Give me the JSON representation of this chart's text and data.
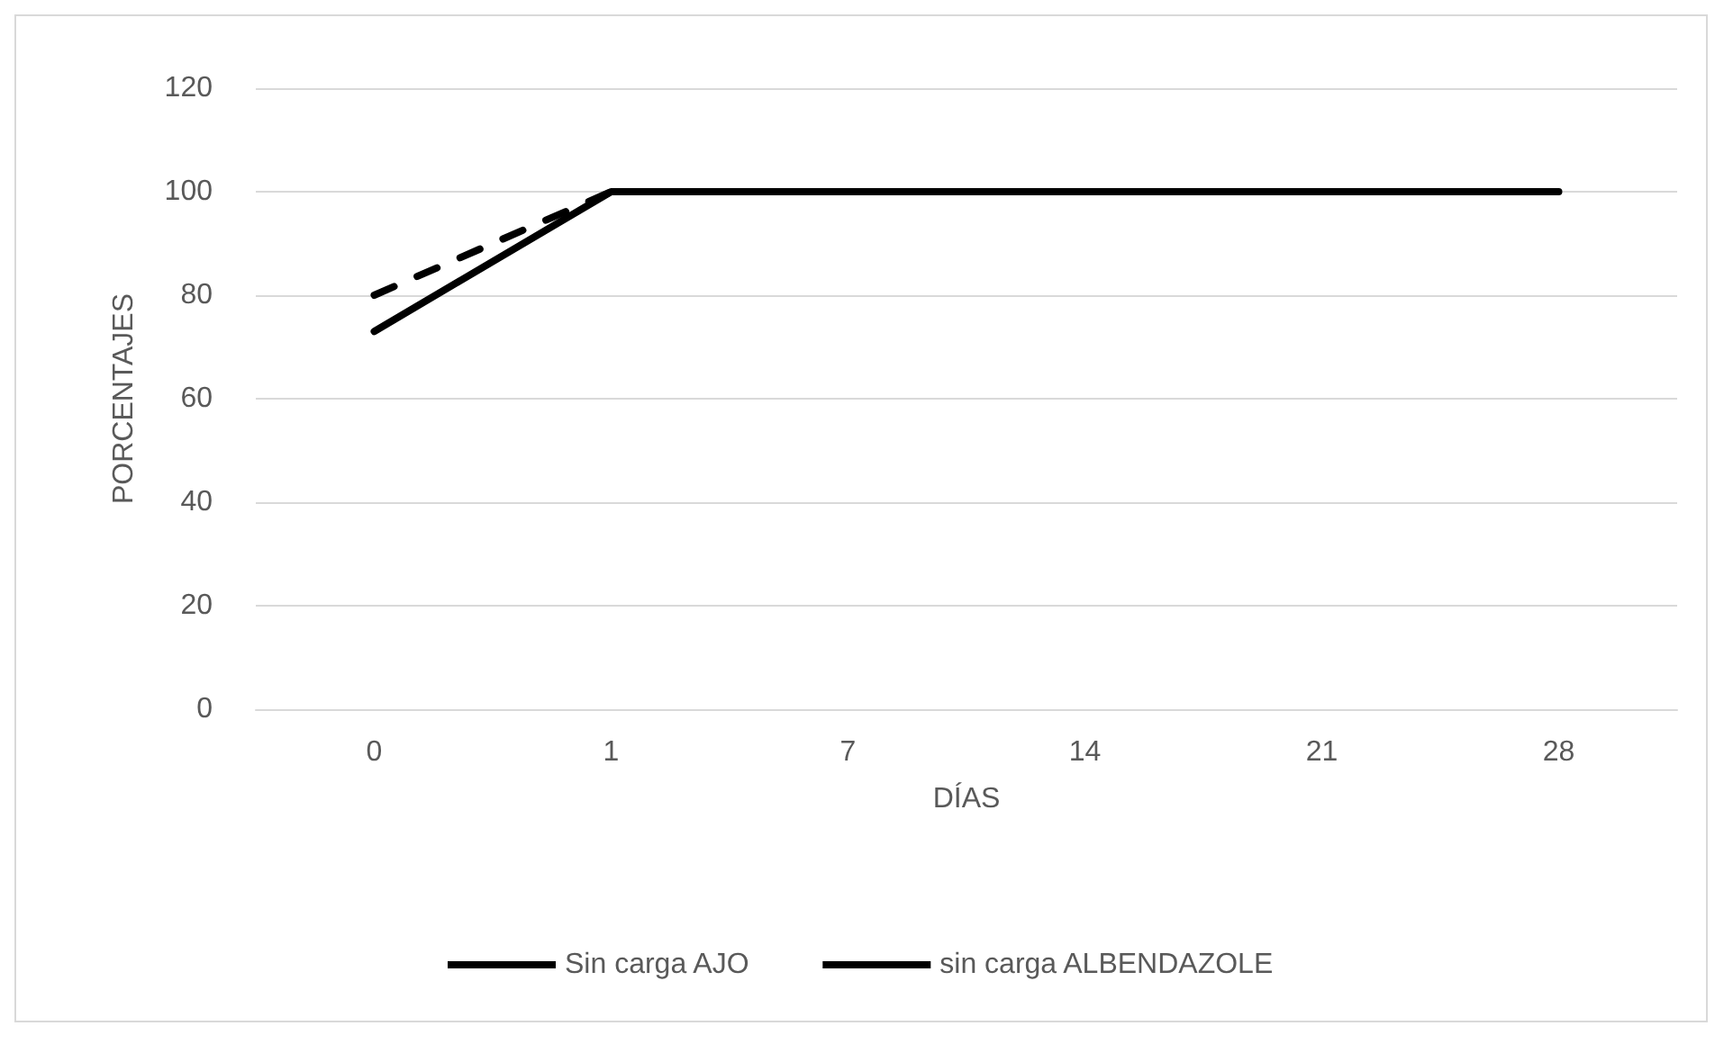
{
  "chart_data": {
    "type": "line",
    "xlabel": "DÍAS",
    "ylabel": "PORCENTAJES",
    "categories": [
      "0",
      "1",
      "7",
      "14",
      "21",
      "28"
    ],
    "series": [
      {
        "name": "Sin carga AJO",
        "color": "#000000",
        "line_style": "solid",
        "values": [
          73,
          100,
          100,
          100,
          100,
          100
        ]
      },
      {
        "name": "sin carga ALBENDAZOLE",
        "color": "#000000",
        "line_style": "dashed",
        "values": [
          80,
          100,
          100,
          100,
          100,
          100
        ]
      }
    ],
    "ylim": [
      0,
      120
    ],
    "yticks": [
      0,
      20,
      40,
      60,
      80,
      100,
      120
    ],
    "grid": "y",
    "legend": "bottom",
    "marker": "none"
  }
}
